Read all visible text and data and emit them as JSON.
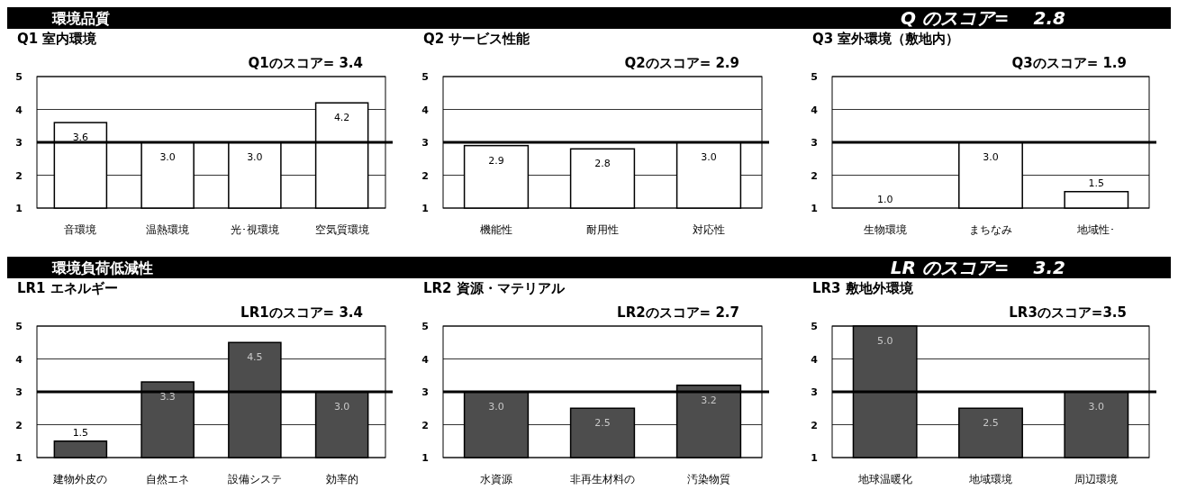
{
  "chart_data": [
    {
      "type": "bar",
      "title": "Q1 室内環境",
      "subtitle": "Q1のスコア= 3.4",
      "annotations": [
        "環境品質",
        "Q のスコア=　 2.8"
      ],
      "categories": [
        "音環境",
        "温熱環境",
        "光･視環境",
        "空気質環境"
      ],
      "values": [
        3.6,
        3.0,
        3.0,
        4.2
      ],
      "value_labels": [
        "3.6",
        "3.0",
        "3.0",
        "4.2"
      ],
      "color": "#ffffff",
      "ylim": [
        1,
        5
      ],
      "yticks": [
        1,
        2,
        3,
        4,
        5
      ],
      "grid": "y",
      "ref_lines": [
        {
          "axis": "y",
          "value": 3
        }
      ]
    },
    {
      "type": "bar",
      "title": "Q2 サービス性能",
      "subtitle": "Q2のスコア= 2.9",
      "categories": [
        "機能性",
        "耐用性",
        "対応性"
      ],
      "values": [
        2.9,
        2.8,
        3.0
      ],
      "value_labels": [
        "2.9",
        "2.8",
        "3.0"
      ],
      "color": "#ffffff",
      "ylim": [
        1,
        5
      ],
      "yticks": [
        1,
        2,
        3,
        4,
        5
      ],
      "grid": "y",
      "ref_lines": [
        {
          "axis": "y",
          "value": 3
        }
      ]
    },
    {
      "type": "bar",
      "title": "Q3 室外環境（敷地内）",
      "subtitle": "Q3のスコア= 1.9",
      "categories": [
        "生物環境",
        "まちなみ",
        "地域性･"
      ],
      "values": [
        1.0,
        3.0,
        1.5
      ],
      "value_labels": [
        "1.0",
        "3.0",
        "1.5"
      ],
      "color": "#ffffff",
      "ylim": [
        1,
        5
      ],
      "yticks": [
        1,
        2,
        3,
        4,
        5
      ],
      "grid": "y",
      "ref_lines": [
        {
          "axis": "y",
          "value": 3
        }
      ]
    },
    {
      "type": "bar",
      "title": "LR1 エネルギー",
      "subtitle": "LR1のスコア= 3.4",
      "annotations": [
        "環境負荷低減性",
        "LR のスコア=　 3.2"
      ],
      "categories": [
        "建物外皮の",
        "自然エネ",
        "設備システ",
        "効率的"
      ],
      "values": [
        1.5,
        3.3,
        4.5,
        3.0
      ],
      "value_labels": [
        "1.5",
        "3.3",
        "4.5",
        "3.0"
      ],
      "color": "#4d4d4d",
      "ylim": [
        1,
        5
      ],
      "yticks": [
        1,
        2,
        3,
        4,
        5
      ],
      "grid": "y",
      "ref_lines": [
        {
          "axis": "y",
          "value": 3
        }
      ]
    },
    {
      "type": "bar",
      "title": "LR2 資源・マテリアル",
      "subtitle": "LR2のスコア= 2.7",
      "categories": [
        "水資源",
        "非再生材料の",
        "汚染物質"
      ],
      "values": [
        3.0,
        2.5,
        3.2
      ],
      "value_labels": [
        "3.0",
        "2.5",
        "3.2"
      ],
      "color": "#4d4d4d",
      "ylim": [
        1,
        5
      ],
      "yticks": [
        1,
        2,
        3,
        4,
        5
      ],
      "grid": "y",
      "ref_lines": [
        {
          "axis": "y",
          "value": 3
        }
      ]
    },
    {
      "type": "bar",
      "title": "LR3 敷地外環境",
      "subtitle": "LR3のスコア=3.5",
      "categories": [
        "地球温暖化",
        "地域環境",
        "周辺環境"
      ],
      "values": [
        5.0,
        2.5,
        3.0
      ],
      "value_labels": [
        "5.0",
        "2.5",
        "3.0"
      ],
      "color": "#4d4d4d",
      "ylim": [
        1,
        5
      ],
      "yticks": [
        1,
        2,
        3,
        4,
        5
      ],
      "grid": "y",
      "ref_lines": [
        {
          "axis": "y",
          "value": 3
        }
      ]
    }
  ]
}
